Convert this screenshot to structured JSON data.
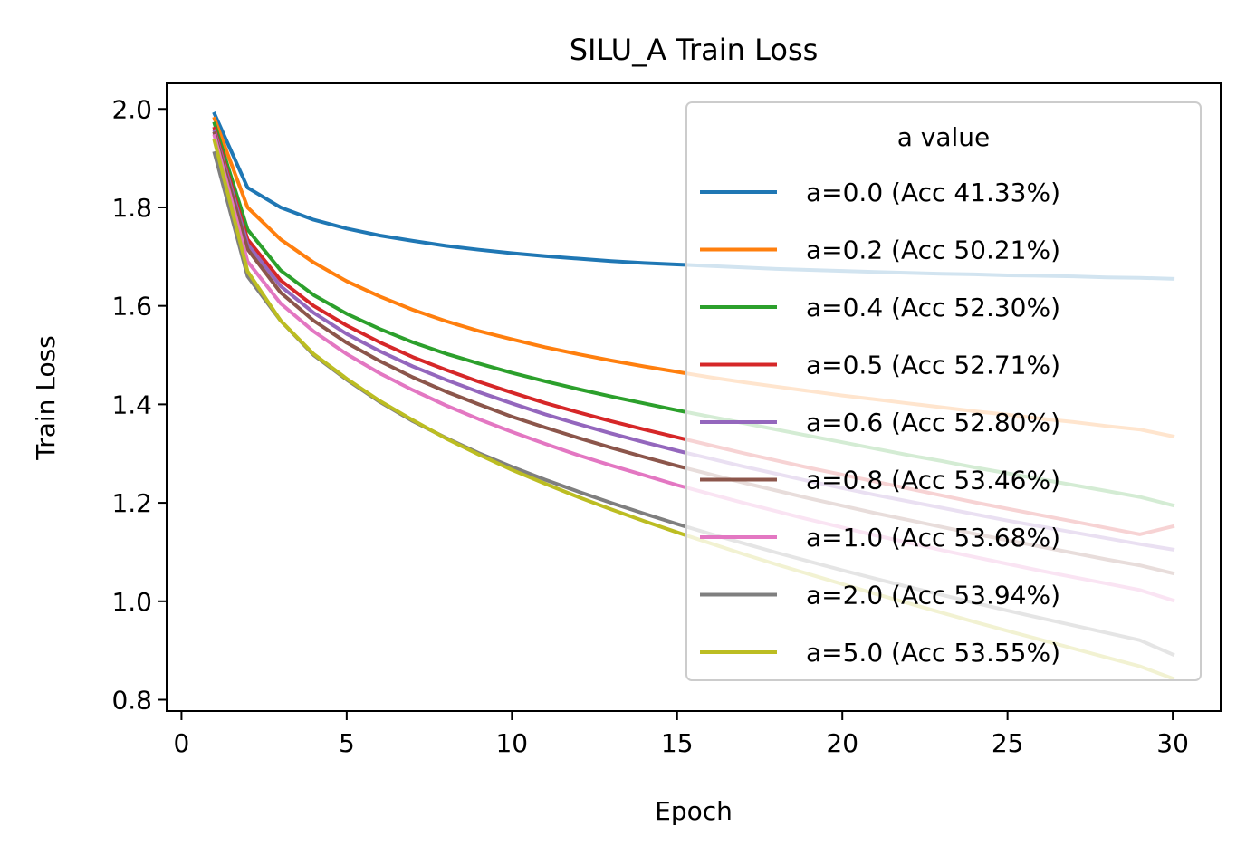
{
  "chart_data": {
    "type": "line",
    "title": "SILU_A Train Loss",
    "xlabel": "Epoch",
    "ylabel": "Train Loss",
    "xlim": [
      -0.45,
      31.45
    ],
    "ylim": [
      0.777,
      2.052
    ],
    "xticks": [
      0,
      5,
      10,
      15,
      20,
      25,
      30
    ],
    "xtick_labels": [
      "0",
      "5",
      "10",
      "15",
      "20",
      "25",
      "30"
    ],
    "yticks": [
      0.8,
      1.0,
      1.2,
      1.4,
      1.6,
      1.8,
      2.0
    ],
    "ytick_labels": [
      "0.8",
      "1.0",
      "1.2",
      "1.4",
      "1.6",
      "1.8",
      "2.0"
    ],
    "grid": false,
    "legend": {
      "title": "a value",
      "placement": "upper-right"
    },
    "x": [
      1,
      2,
      3,
      4,
      5,
      6,
      7,
      8,
      9,
      10,
      11,
      12,
      13,
      14,
      15,
      16,
      17,
      18,
      19,
      20,
      21,
      22,
      23,
      24,
      25,
      26,
      27,
      28,
      29,
      30
    ],
    "series": [
      {
        "name": "a=0.0 (Acc 41.33%)",
        "color": "#1f77b4",
        "values": [
          1.99,
          1.84,
          1.8,
          1.775,
          1.757,
          1.743,
          1.732,
          1.722,
          1.714,
          1.707,
          1.701,
          1.696,
          1.691,
          1.687,
          1.684,
          1.681,
          1.678,
          1.675,
          1.673,
          1.671,
          1.669,
          1.667,
          1.665,
          1.664,
          1.662,
          1.661,
          1.66,
          1.658,
          1.657,
          1.655
        ]
      },
      {
        "name": "a=0.2 (Acc 50.21%)",
        "color": "#ff7f0e",
        "values": [
          1.98,
          1.8,
          1.735,
          1.688,
          1.65,
          1.619,
          1.592,
          1.569,
          1.549,
          1.532,
          1.516,
          1.502,
          1.489,
          1.477,
          1.466,
          1.455,
          1.445,
          1.436,
          1.427,
          1.418,
          1.41,
          1.402,
          1.394,
          1.386,
          1.379,
          1.371,
          1.364,
          1.356,
          1.349,
          1.335
        ]
      },
      {
        "name": "a=0.4 (Acc 52.30%)",
        "color": "#2ca02c",
        "values": [
          1.97,
          1.755,
          1.672,
          1.622,
          1.584,
          1.553,
          1.526,
          1.503,
          1.483,
          1.464,
          1.447,
          1.431,
          1.416,
          1.402,
          1.388,
          1.375,
          1.362,
          1.349,
          1.336,
          1.323,
          1.31,
          1.297,
          1.285,
          1.272,
          1.26,
          1.248,
          1.236,
          1.224,
          1.212,
          1.195
        ]
      },
      {
        "name": "a=0.5 (Acc 52.71%)",
        "color": "#d62728",
        "values": [
          1.96,
          1.735,
          1.652,
          1.6,
          1.56,
          1.526,
          1.496,
          1.47,
          1.446,
          1.424,
          1.403,
          1.384,
          1.366,
          1.349,
          1.333,
          1.317,
          1.301,
          1.286,
          1.271,
          1.257,
          1.243,
          1.229,
          1.215,
          1.201,
          1.188,
          1.175,
          1.162,
          1.149,
          1.136,
          1.152
        ]
      },
      {
        "name": "a=0.6 (Acc 52.80%)",
        "color": "#9467bd",
        "values": [
          1.955,
          1.725,
          1.64,
          1.586,
          1.543,
          1.508,
          1.477,
          1.45,
          1.425,
          1.402,
          1.38,
          1.36,
          1.341,
          1.323,
          1.306,
          1.29,
          1.274,
          1.259,
          1.244,
          1.23,
          1.216,
          1.203,
          1.19,
          1.177,
          1.164,
          1.152,
          1.14,
          1.128,
          1.116,
          1.105
        ]
      },
      {
        "name": "a=0.8 (Acc 53.46%)",
        "color": "#8c564b",
        "values": [
          1.95,
          1.715,
          1.627,
          1.57,
          1.525,
          1.488,
          1.455,
          1.426,
          1.4,
          1.375,
          1.353,
          1.332,
          1.312,
          1.293,
          1.275,
          1.258,
          1.241,
          1.225,
          1.209,
          1.194,
          1.179,
          1.165,
          1.151,
          1.137,
          1.124,
          1.111,
          1.098,
          1.085,
          1.073,
          1.057
        ]
      },
      {
        "name": "a=1.0 (Acc 53.68%)",
        "color": "#e377c2",
        "values": [
          1.945,
          1.69,
          1.605,
          1.548,
          1.502,
          1.463,
          1.429,
          1.398,
          1.37,
          1.344,
          1.32,
          1.297,
          1.276,
          1.256,
          1.236,
          1.218,
          1.2,
          1.183,
          1.166,
          1.15,
          1.134,
          1.119,
          1.104,
          1.09,
          1.076,
          1.062,
          1.049,
          1.036,
          1.023,
          1.002
        ]
      },
      {
        "name": "a=2.0 (Acc 53.94%)",
        "color": "#7f7f7f",
        "values": [
          1.91,
          1.66,
          1.57,
          1.5,
          1.45,
          1.405,
          1.366,
          1.332,
          1.301,
          1.273,
          1.247,
          1.223,
          1.2,
          1.178,
          1.157,
          1.137,
          1.118,
          1.099,
          1.081,
          1.063,
          1.046,
          1.029,
          1.013,
          0.997,
          0.981,
          0.966,
          0.951,
          0.936,
          0.921,
          0.892
        ]
      },
      {
        "name": "a=5.0 (Acc 53.55%)",
        "color": "#bcbd22",
        "values": [
          1.935,
          1.67,
          1.57,
          1.502,
          1.452,
          1.407,
          1.368,
          1.331,
          1.298,
          1.267,
          1.239,
          1.212,
          1.187,
          1.163,
          1.14,
          1.118,
          1.096,
          1.075,
          1.055,
          1.035,
          1.015,
          0.996,
          0.977,
          0.958,
          0.94,
          0.922,
          0.904,
          0.886,
          0.868,
          0.843
        ]
      }
    ]
  }
}
